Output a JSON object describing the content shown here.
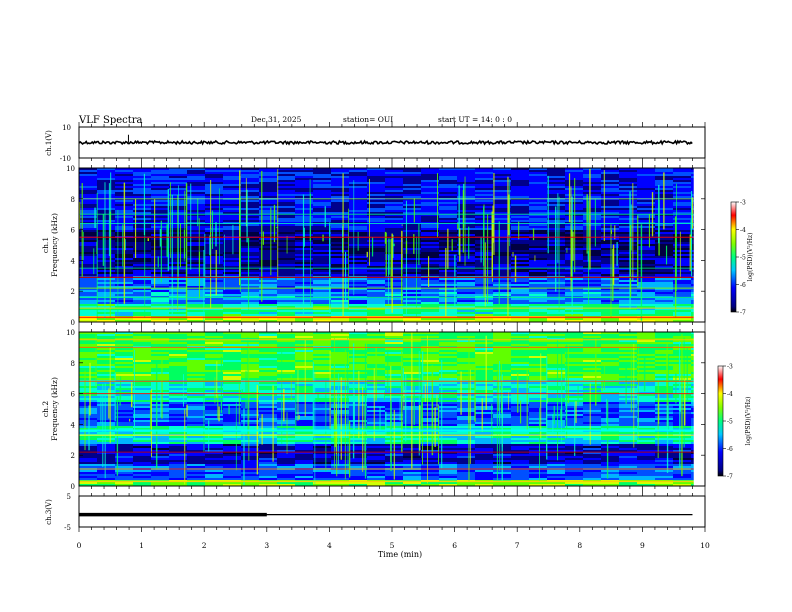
{
  "header": {
    "title": "VLF Spectra",
    "date": "Dec.31, 2025",
    "station": "station= OUI",
    "start": "start  UT =   14: 0  : 0"
  },
  "chart_data": [
    {
      "type": "line",
      "panel": "ch1-waveform",
      "ylabel": "ch.1(V)",
      "ylim": [
        -10,
        10
      ],
      "y_ticks": [
        "10",
        "-10"
      ],
      "baseline": 0,
      "spike": {
        "x": 0.79,
        "y": 5
      },
      "x_range_min": [
        0,
        9.8
      ]
    },
    {
      "type": "heatmap",
      "panel": "ch1-spectrogram",
      "ylabel": "ch.1\nFrequency (kHz)",
      "ylim": [
        0,
        10
      ],
      "y_ticks": [
        "0",
        "2",
        "4",
        "6",
        "8",
        "10"
      ],
      "colorbar": {
        "label": "log(PSD)(V²/Hz)",
        "range": [
          -7,
          -3
        ],
        "ticks": [
          "-3",
          "-4",
          "-5",
          "-6",
          "-7"
        ]
      }
    },
    {
      "type": "heatmap",
      "panel": "ch2-spectrogram",
      "ylabel": "ch.2\nFrequency (kHz)",
      "ylim": [
        0,
        10
      ],
      "y_ticks": [
        "0",
        "2",
        "4",
        "6",
        "8",
        "10"
      ],
      "colorbar": {
        "label": "log(PSD)(V²/Hz)",
        "range": [
          -7,
          -3
        ],
        "ticks": [
          "-3",
          "-4",
          "-5",
          "-6",
          "-7"
        ]
      }
    },
    {
      "type": "line",
      "panel": "ch3-level",
      "ylabel": "ch.3(V)",
      "ylim": [
        -5,
        5
      ],
      "y_ticks": [
        "5",
        "-5"
      ],
      "level": -1,
      "thick_until_min": 3,
      "x_range_min": [
        0,
        9.8
      ]
    }
  ],
  "xaxis": {
    "label": "Time (min)",
    "range": [
      0,
      10
    ],
    "ticks": [
      "0",
      "1",
      "2",
      "3",
      "4",
      "5",
      "6",
      "7",
      "8",
      "9",
      "10"
    ]
  }
}
